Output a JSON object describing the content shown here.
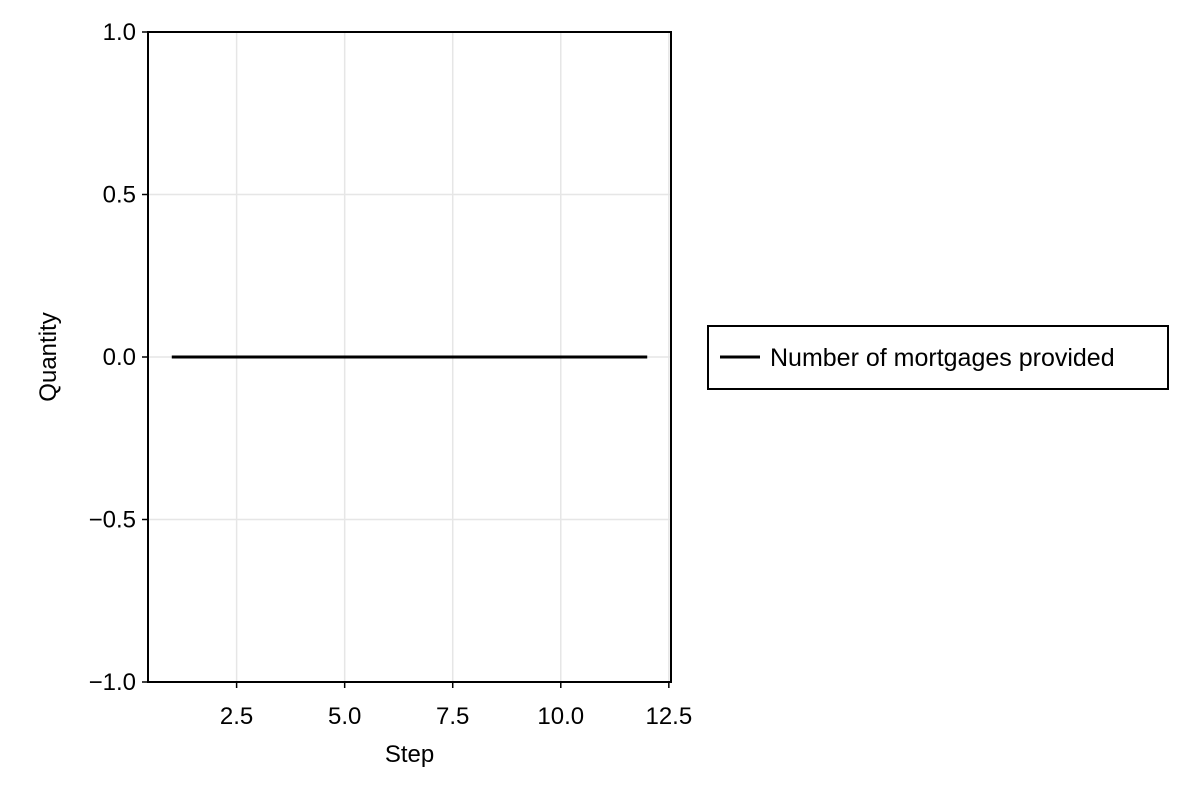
{
  "chart_data": {
    "type": "line",
    "xlabel": "Step",
    "ylabel": "Quantity",
    "xlim": [
      0.45,
      12.55
    ],
    "ylim": [
      -1.0,
      1.0
    ],
    "x_ticks": [
      2.5,
      5.0,
      7.5,
      10.0,
      12.5
    ],
    "x_tick_labels": [
      "2.5",
      "5.0",
      "7.5",
      "10.0",
      "12.5"
    ],
    "y_ticks": [
      -1.0,
      -0.5,
      0.0,
      0.5,
      1.0
    ],
    "y_tick_labels": [
      "−1.0",
      "−0.5",
      "0.0",
      "0.5",
      "1.0"
    ],
    "grid": true,
    "legend_position": "right",
    "series": [
      {
        "name": "Number of mortgages provided",
        "color": "#000000",
        "x": [
          1,
          2,
          3,
          4,
          5,
          6,
          7,
          8,
          9,
          10,
          11,
          12
        ],
        "y": [
          0,
          0,
          0,
          0,
          0,
          0,
          0,
          0,
          0,
          0,
          0,
          0
        ]
      }
    ]
  }
}
